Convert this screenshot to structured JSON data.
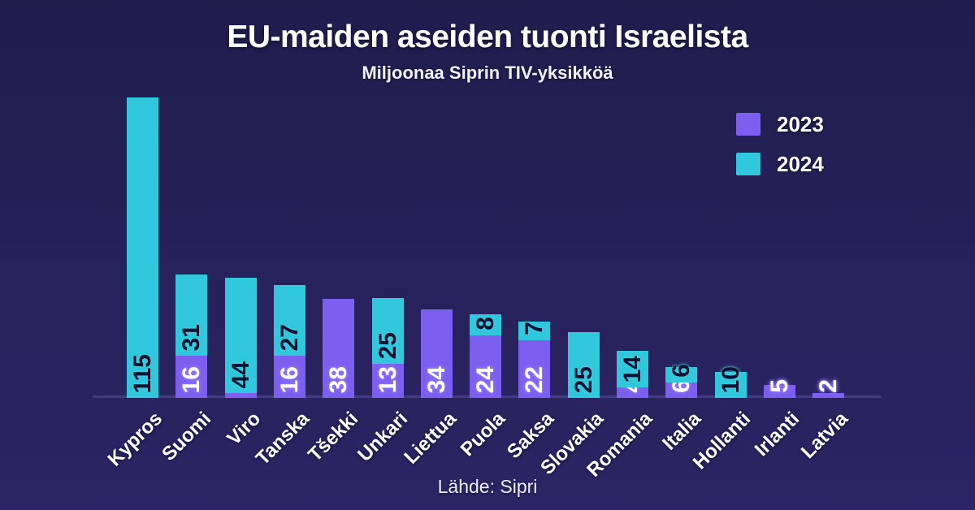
{
  "header": {
    "title": "EU-maiden aseiden tuonti Israelista",
    "subtitle": "Miljoonaa Siprin TIV-yksikköä"
  },
  "footer": {
    "source": "Lähde: Sipri"
  },
  "colors": {
    "background_top": "#201d4d",
    "background_bottom": "#2c2464",
    "series_2023": "#7d5ff0",
    "series_2024": "#31c7dc",
    "label_on_2023": "#ffffff",
    "label_on_2024": "#10102f"
  },
  "chart_data": {
    "type": "bar",
    "stacked": true,
    "title": "EU-maiden aseiden tuonti Israelista",
    "subtitle": "Miljoonaa Siprin TIV-yksikköä",
    "xlabel": "",
    "ylabel": "Miljoonaa Siprin TIV-yksikköä",
    "ylim": [
      0,
      120
    ],
    "grid": false,
    "legend_position": "top-right",
    "value_labels": true,
    "categories": [
      "Kypros",
      "Suomi",
      "Viro",
      "Tanska",
      "Tšekki",
      "Unkari",
      "Liettua",
      "Puola",
      "Saksa",
      "Slovakia",
      "Romania",
      "Italia",
      "Hollanti",
      "Irlanti",
      "Latvia"
    ],
    "series": [
      {
        "name": "2023",
        "color": "#7d5ff0",
        "label_color": "#ffffff",
        "values": [
          0,
          16,
          2,
          16,
          38,
          13,
          34,
          24,
          22,
          0,
          4,
          6,
          0,
          5,
          2
        ]
      },
      {
        "name": "2024",
        "color": "#31c7dc",
        "label_color": "#10102f",
        "values": [
          115,
          31,
          44,
          27,
          0,
          25,
          0,
          8,
          7,
          25,
          14,
          6,
          10,
          0,
          0
        ]
      }
    ]
  }
}
